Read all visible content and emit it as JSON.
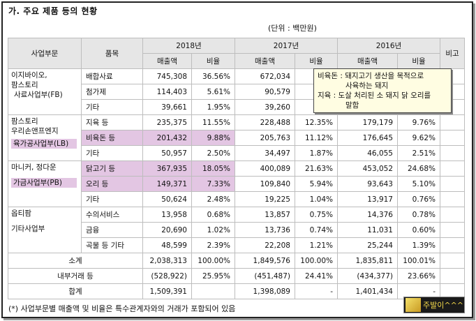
{
  "title": "가. 주요 제품 등의 현황",
  "unit": "(단위 : 백만원)",
  "headers": {
    "segment": "사업부문",
    "product": "품목",
    "y2018": "2018년",
    "y2017": "2017년",
    "y2016": "2016년",
    "remark": "비고",
    "sales": "매출액",
    "ratio": "비율"
  },
  "segments": {
    "fb_line1": "이지바이오,",
    "fb_line2": "팜스토리",
    "fb_line3": "사료사업부(FB)",
    "lb_line1": "팜스토리",
    "lb_line2": "우리손앤프엔지",
    "lb_line3": "육가공사업부(LB)",
    "pb_line1": "마니커, 정다운",
    "pb_line2": "가금사업부(PB)",
    "etc_line1": "옵티팜",
    "etc_line2": "기타사업부"
  },
  "rows": [
    {
      "product": "배합사료",
      "s18": "745,308",
      "r18": "36.56%",
      "s17": "672,034",
      "r17": "36.",
      "s16": "",
      "r16": ""
    },
    {
      "product": "첨가제",
      "s18": "114,403",
      "r18": "5.61%",
      "s17": "90,579",
      "r17": "4",
      "s16": "",
      "r16": ""
    },
    {
      "product": "기타",
      "s18": "39,661",
      "r18": "1.95%",
      "s17": "39,260",
      "r17": "2.",
      "s16": "",
      "r16": ""
    },
    {
      "product": "지육 등",
      "s18": "235,375",
      "r18": "11.55%",
      "s17": "228,488",
      "r17": "12.35%",
      "s16": "179,179",
      "r16": "9.76%"
    },
    {
      "product": "비육돈 등",
      "s18": "201,432",
      "r18": "9.88%",
      "s17": "205,763",
      "r17": "11.12%",
      "s16": "176,645",
      "r16": "9.62%"
    },
    {
      "product": "기타",
      "s18": "50,957",
      "r18": "2.50%",
      "s17": "34,497",
      "r17": "1.87%",
      "s16": "46,055",
      "r16": "2.51%"
    },
    {
      "product": "닭고기 등",
      "s18": "367,935",
      "r18": "18.05%",
      "s17": "400,089",
      "r17": "21.63%",
      "s16": "453,052",
      "r16": "24.68%"
    },
    {
      "product": "오리 등",
      "s18": "149,371",
      "r18": "7.33%",
      "s17": "109,840",
      "r17": "5.94%",
      "s16": "93,643",
      "r16": "5.10%"
    },
    {
      "product": "기타",
      "s18": "50,624",
      "r18": "2.48%",
      "s17": "19,225",
      "r17": "1.04%",
      "s16": "13,917",
      "r16": "0.76%"
    },
    {
      "product": "수의서비스",
      "s18": "13,958",
      "r18": "0.68%",
      "s17": "13,857",
      "r17": "0.75%",
      "s16": "14,376",
      "r16": "0.78%"
    },
    {
      "product": "금융",
      "s18": "20,690",
      "r18": "1.02%",
      "s17": "13,736",
      "r17": "0.74%",
      "s16": "11,031",
      "r16": "0.60%"
    },
    {
      "product": "곡물 등 기타",
      "s18": "48,599",
      "r18": "2.39%",
      "s17": "22,208",
      "r17": "1.21%",
      "s16": "25,244",
      "r16": "1.39%"
    }
  ],
  "totals": {
    "subtotal": {
      "label": "소계",
      "s18": "2,038,313",
      "r18": "100.00%",
      "s17": "1,849,576",
      "r17": "100.00%",
      "s16": "1,835,811",
      "r16": "100.01%"
    },
    "internal": {
      "label": "내부거래 등",
      "s18": "(528,922)",
      "r18": "25.95%",
      "s17": "(451,487)",
      "r17": "24.41%",
      "s16": "(434,377)",
      "r16": "23.66%"
    },
    "total": {
      "label": "합계",
      "s18": "1,509,391",
      "r18": "",
      "s17": "1,398,089",
      "r17": "-",
      "s16": "1,401,434",
      "r16": "-"
    }
  },
  "footnote": "(*) 사업부문별 매출액 및 비율은 특수관계자와의 거래가 포함되어 있음",
  "tooltip": {
    "line1": "비육돈 : 돼지고기 생산을 목적으로",
    "line2": "사육하는 돼지",
    "line3": "지육 : 도살 처리된 소 돼지 닭 오리를",
    "line4": "말함"
  },
  "badge": {
    "label": "주발이^^^"
  }
}
